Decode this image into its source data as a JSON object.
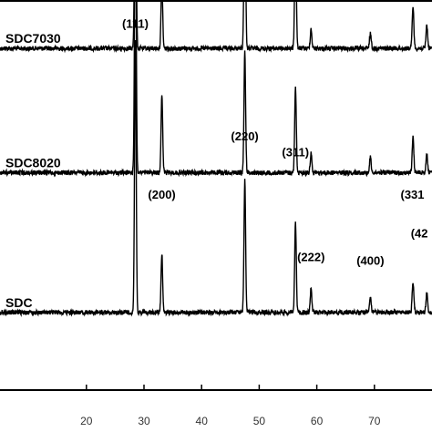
{
  "chart_data": {
    "type": "line",
    "title": "",
    "xlabel": "",
    "ylabel": "",
    "xlim": [
      5,
      80
    ],
    "x_ticks": [
      20,
      30,
      40,
      50,
      60,
      70
    ],
    "grid": false,
    "legend": "none",
    "series": [
      {
        "name": "SDC7030",
        "baseline": 0.12,
        "noise": 0.006,
        "peaks": [
          {
            "x": 28.5,
            "h": 0.57
          },
          {
            "x": 33.1,
            "h": 0.17
          },
          {
            "x": 47.5,
            "h": 0.43
          },
          {
            "x": 56.3,
            "h": 0.31
          },
          {
            "x": 59.0,
            "h": 0.05
          },
          {
            "x": 69.3,
            "h": 0.04
          },
          {
            "x": 76.7,
            "h": 0.11
          },
          {
            "x": 79.1,
            "h": 0.06
          }
        ]
      },
      {
        "name": "SDC8020",
        "baseline": 0.44,
        "noise": 0.006,
        "peaks": [
          {
            "x": 28.5,
            "h": 0.76
          },
          {
            "x": 33.1,
            "h": 0.2
          },
          {
            "x": 47.5,
            "h": 0.31
          },
          {
            "x": 56.3,
            "h": 0.22
          },
          {
            "x": 59.0,
            "h": 0.05
          },
          {
            "x": 69.3,
            "h": 0.04
          },
          {
            "x": 76.7,
            "h": 0.09
          },
          {
            "x": 79.1,
            "h": 0.05
          }
        ]
      },
      {
        "name": "SDC",
        "baseline": 0.8,
        "noise": 0.006,
        "peaks": [
          {
            "x": 28.5,
            "h": 0.7
          },
          {
            "x": 33.1,
            "h": 0.15
          },
          {
            "x": 47.5,
            "h": 0.34
          },
          {
            "x": 56.3,
            "h": 0.23
          },
          {
            "x": 59.0,
            "h": 0.06
          },
          {
            "x": 69.3,
            "h": 0.04
          },
          {
            "x": 76.7,
            "h": 0.08
          },
          {
            "x": 79.1,
            "h": 0.05
          }
        ]
      }
    ],
    "peak_labels": [
      {
        "text": "(111)",
        "x": 28.5,
        "y": -0.05
      },
      {
        "text": "(200)",
        "x": 33.1,
        "y": 0.39
      },
      {
        "text": "(220)",
        "x": 47.5,
        "y": 0.24
      },
      {
        "text": "(311)",
        "x": 56.3,
        "y": 0.28
      },
      {
        "text": "(222)",
        "x": 59.0,
        "y": 0.55
      },
      {
        "text": "(400)",
        "x": 69.3,
        "y": 0.56
      },
      {
        "text": "(331",
        "x": 76.6,
        "y": 0.39
      },
      {
        "text": "(42",
        "x": 77.8,
        "y": 0.49
      }
    ]
  }
}
